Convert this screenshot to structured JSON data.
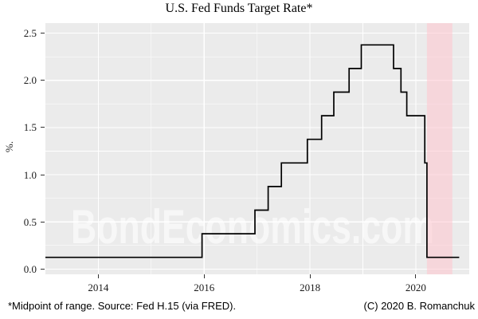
{
  "page": {
    "footnote_left": "*Midpoint of range. Source: Fed H.15 (via FRED).",
    "footnote_right": "(C) 2020 B. Romanchuk"
  },
  "chart_data": {
    "type": "step-line",
    "title": "U.S. Fed Funds Target Rate*",
    "ylabel": "%.",
    "watermark": "BondEconomics.com",
    "x_domain": [
      2013.0,
      2021.01
    ],
    "y_domain": [
      -0.055,
      2.606
    ],
    "x_axis": {
      "major_ticks": [
        {
          "t": 2014,
          "label": "2014"
        },
        {
          "t": 2016,
          "label": "2016"
        },
        {
          "t": 2018,
          "label": "2018"
        },
        {
          "t": 2020,
          "label": "2020"
        }
      ],
      "minor": [
        2015,
        2017,
        2019
      ]
    },
    "y_axis": {
      "major_ticks": [
        {
          "v": 0.0,
          "label": "0.0"
        },
        {
          "v": 0.5,
          "label": "0.5"
        },
        {
          "v": 1.0,
          "label": "1.0"
        },
        {
          "v": 1.5,
          "label": "1.5"
        },
        {
          "v": 2.0,
          "label": "2.0"
        },
        {
          "v": 2.5,
          "label": "2.5"
        }
      ],
      "minor": [
        0.25,
        0.75,
        1.25,
        1.75,
        2.25
      ]
    },
    "steps": [
      [
        2013.0,
        0.125
      ],
      [
        2015.96,
        0.375
      ],
      [
        2016.96,
        0.625
      ],
      [
        2017.21,
        0.875
      ],
      [
        2017.46,
        1.125
      ],
      [
        2017.95,
        1.375
      ],
      [
        2018.22,
        1.625
      ],
      [
        2018.45,
        1.875
      ],
      [
        2018.74,
        2.125
      ],
      [
        2018.97,
        2.375
      ],
      [
        2019.58,
        2.125
      ],
      [
        2019.72,
        1.875
      ],
      [
        2019.83,
        1.625
      ],
      [
        2020.17,
        1.125
      ],
      [
        2020.21,
        0.125
      ]
    ],
    "line_end": 2020.82,
    "band": {
      "from": 2020.21,
      "to": 2020.69,
      "color": "#ffc4ce",
      "opacity": 0.55
    },
    "colors": {
      "panel_bg": "#ebebeb",
      "grid": "#ffffff",
      "line": "#000000",
      "watermark": "rgba(255,255,255,0.62)",
      "tick": "#333333",
      "text": "#1a1a1a"
    }
  }
}
